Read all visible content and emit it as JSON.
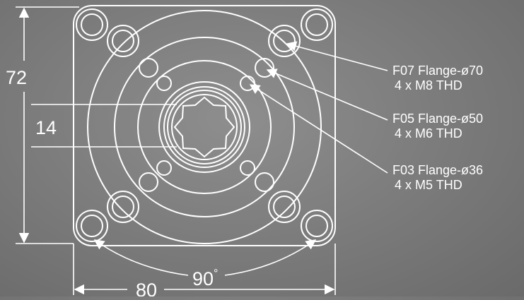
{
  "dimensions": {
    "height_label": "72",
    "shaft_label": "14",
    "width_label": "80",
    "angle_label": "90",
    "angle_unit": "°"
  },
  "flanges": [
    {
      "name": "F07 Flange-ø70",
      "thread": "4 x M8 THD"
    },
    {
      "name": "F05 Flange-ø50",
      "thread": "4 x M6 THD"
    },
    {
      "name": "F03 Flange-ø36",
      "thread": "4 x M5 THD"
    }
  ]
}
